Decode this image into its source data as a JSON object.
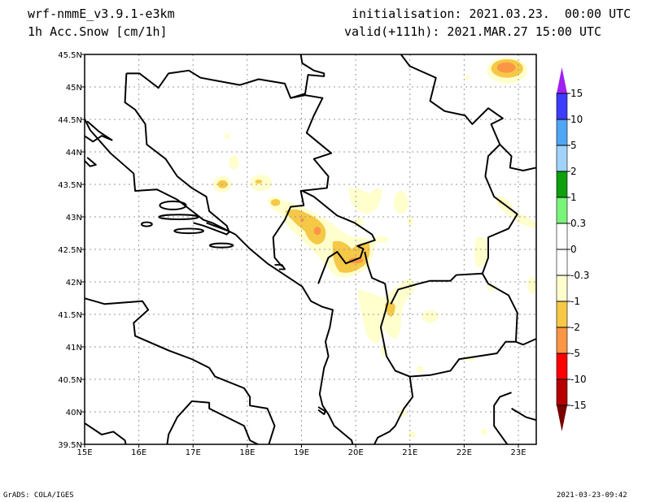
{
  "header": {
    "model": "wrf-nmmE_v3.9.1-e3km",
    "field": "1h Acc.Snow [cm/1h]",
    "init": "initialisation: 2021.03.23.  00:00 UTC",
    "valid": "valid(+111h): 2021.MAR.27 15:00 UTC"
  },
  "footer": {
    "left": "GrADS: COLA/IGES",
    "right": "2021-03-23-09:42"
  },
  "map": {
    "lat_labels": [
      "39.5N",
      "40N",
      "40.5N",
      "41N",
      "41.5N",
      "42N",
      "42.5N",
      "43N",
      "43.5N",
      "44N",
      "44.5N",
      "45N",
      "45.5N"
    ],
    "lat_values": [
      39.5,
      40,
      40.5,
      41,
      41.5,
      42,
      42.5,
      43,
      43.5,
      44,
      44.5,
      45,
      45.5
    ],
    "lon_labels": [
      "15E",
      "16E",
      "17E",
      "18E",
      "19E",
      "20E",
      "21E",
      "22E",
      "23E"
    ],
    "lon_values": [
      15,
      16,
      17,
      18,
      19,
      20,
      21,
      22,
      23
    ],
    "lon_range": [
      15,
      23.33
    ],
    "lat_range": [
      39.5,
      45.5
    ]
  },
  "colorbar": {
    "labels": [
      "15",
      "10",
      "5",
      "2",
      "1",
      "0.3",
      "0",
      "-0.3",
      "-1",
      "-2",
      "-5",
      "-10",
      "-15"
    ],
    "colors": [
      "#a020f0",
      "#3c3cff",
      "#50a5f5",
      "#a0d2fa",
      "#0f9f0f",
      "#78f578",
      "#ffffff",
      "#ffffff",
      "#ffffcd",
      "#f5c846",
      "#fa9646",
      "#ff0000",
      "#b40000",
      "#780000"
    ]
  }
}
